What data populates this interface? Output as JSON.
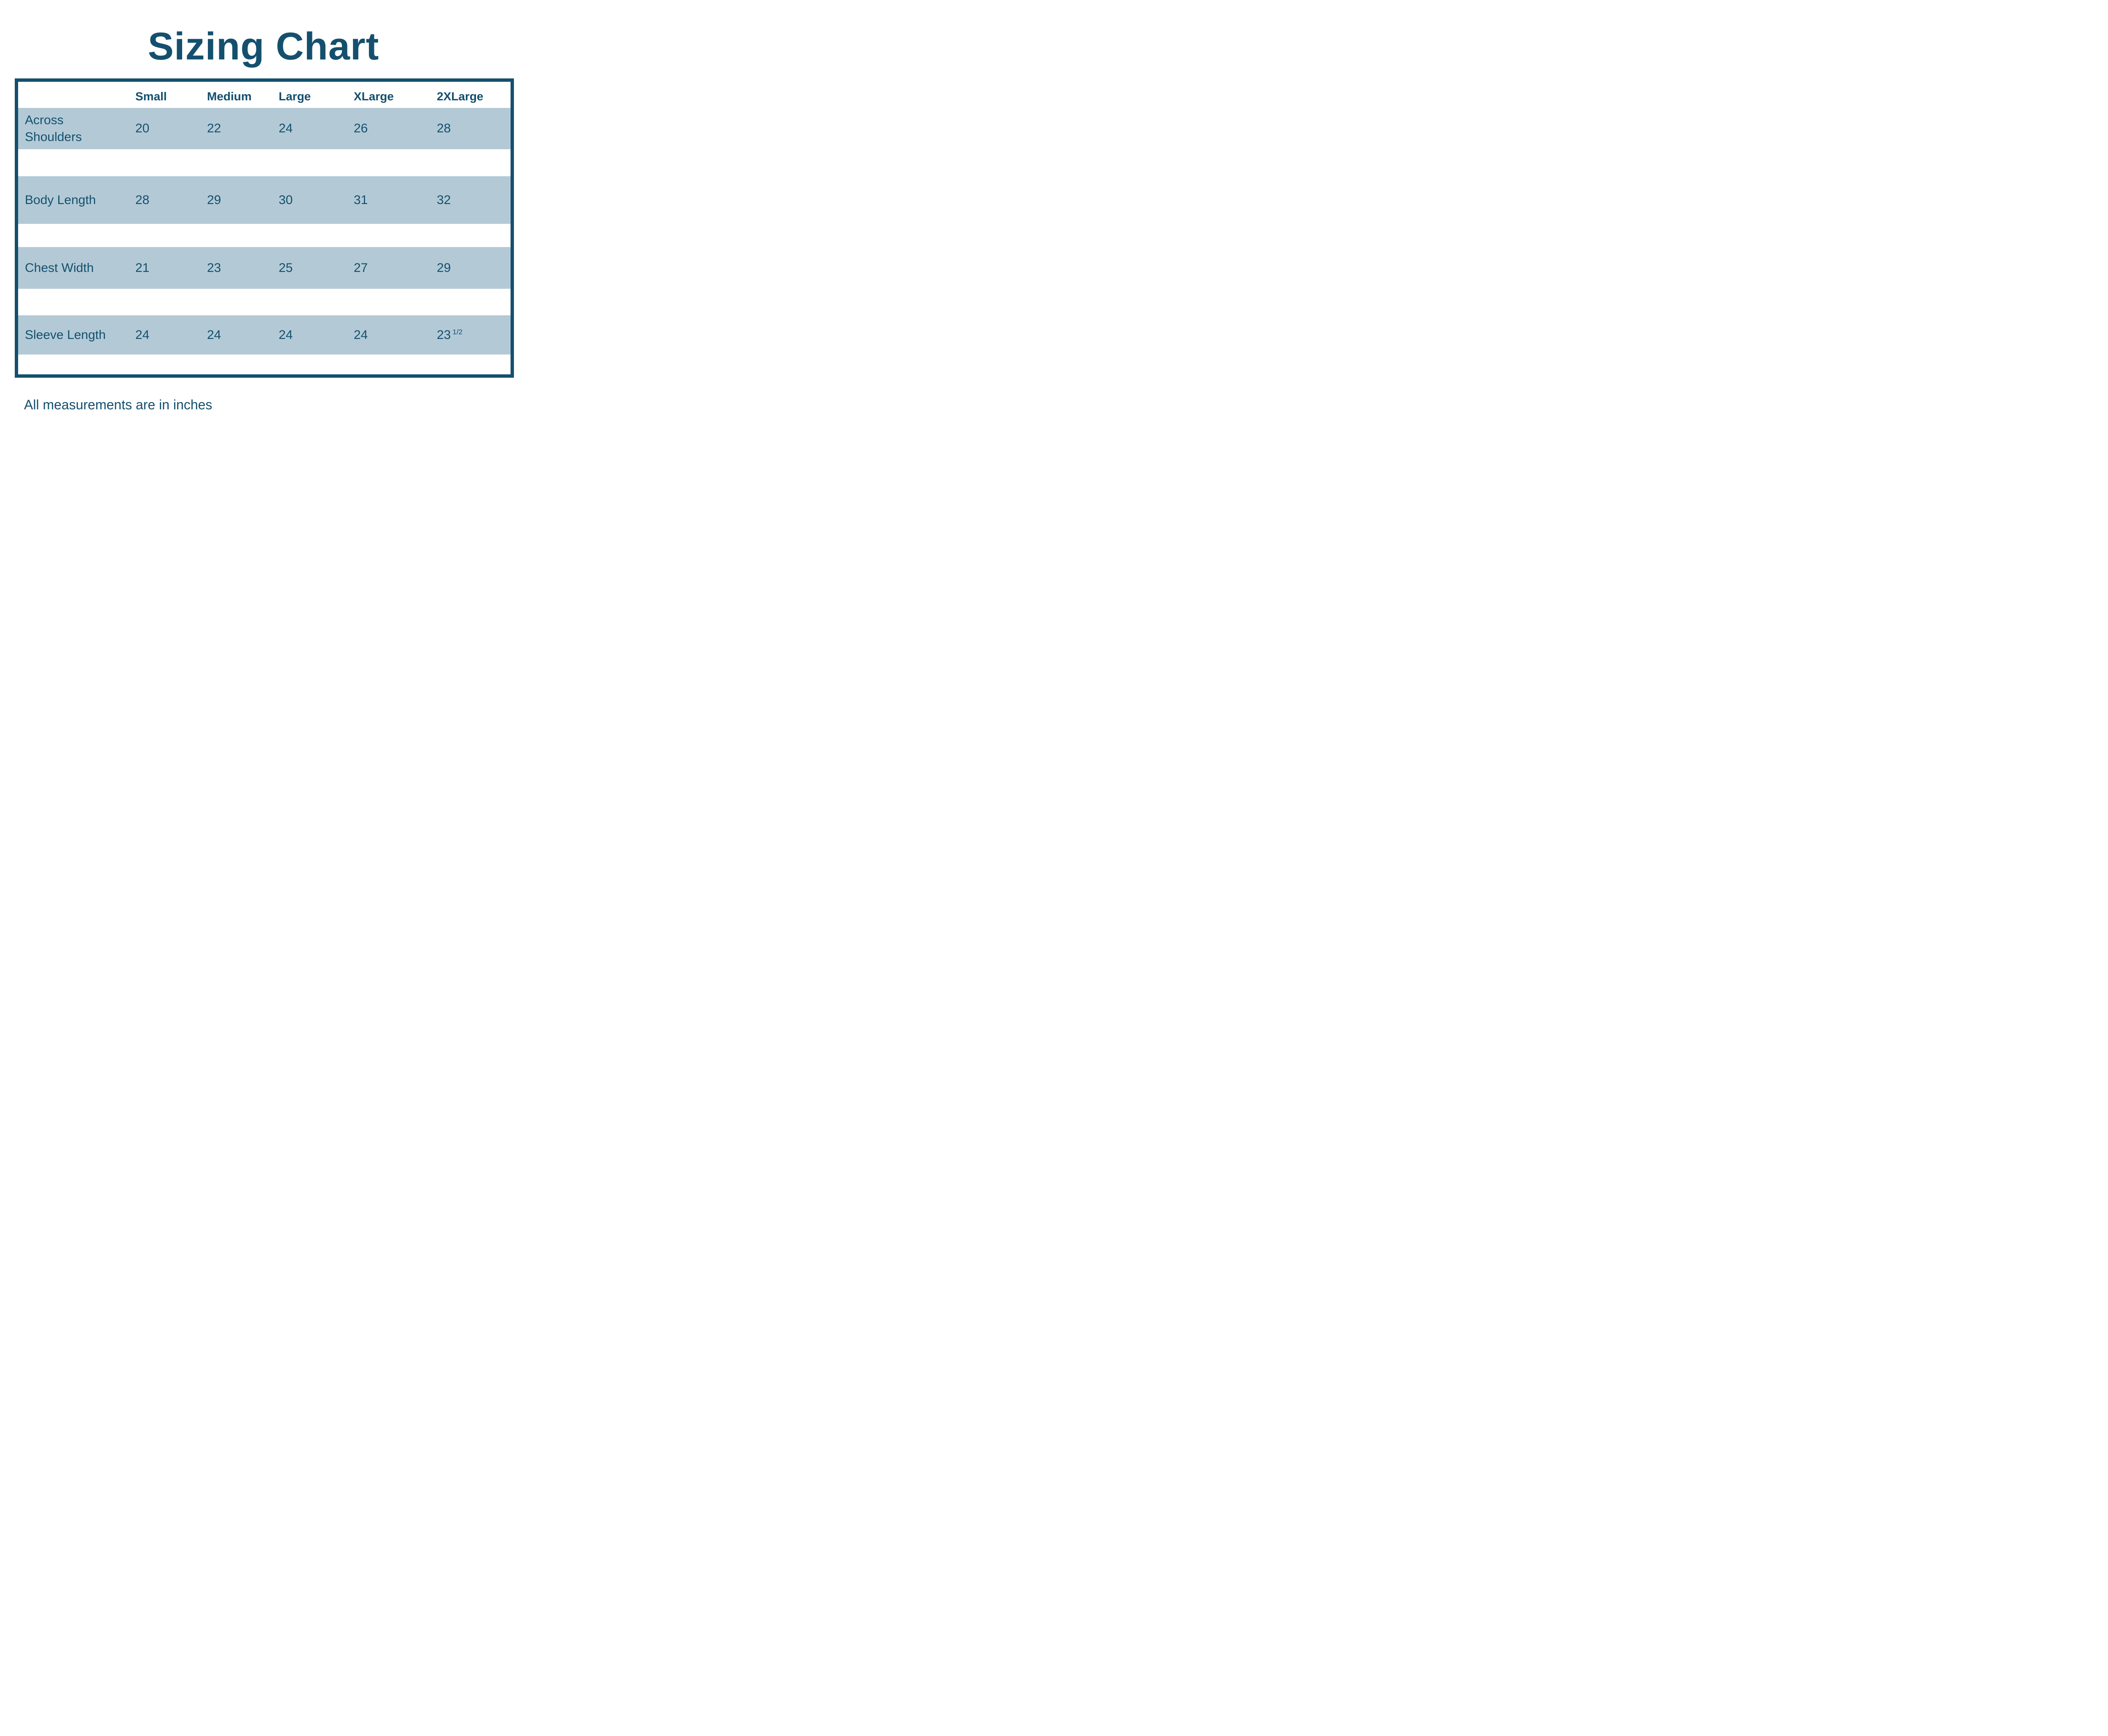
{
  "title": "Sizing Chart",
  "footnote": "All measurements are in inches",
  "colors": {
    "accent": "#14506e",
    "row_background": "#b3cad6",
    "page_background": "#ffffff"
  },
  "table": {
    "columns": [
      "Small",
      "Medium",
      "Large",
      "XLarge",
      "2XLarge"
    ],
    "rows": [
      {
        "label": "Across Shoulders",
        "values": [
          "20",
          "22",
          "24",
          "26",
          "28"
        ]
      },
      {
        "label": "Body Length",
        "values": [
          "28",
          "29",
          "30",
          "31",
          "32"
        ]
      },
      {
        "label": "Chest Width",
        "values": [
          "21",
          "23",
          "25",
          "27",
          "29"
        ]
      },
      {
        "label": "Sleeve Length",
        "values": [
          "24",
          "24",
          "24",
          "24",
          "23"
        ],
        "fraction": "1/2"
      }
    ]
  },
  "chart_data": {
    "type": "table",
    "title": "Sizing Chart",
    "columns": [
      "Small",
      "Medium",
      "Large",
      "XLarge",
      "2XLarge"
    ],
    "rows": [
      {
        "label": "Across Shoulders",
        "values": [
          20,
          22,
          24,
          26,
          28
        ]
      },
      {
        "label": "Body Length",
        "values": [
          28,
          29,
          30,
          31,
          32
        ]
      },
      {
        "label": "Chest Width",
        "values": [
          21,
          23,
          25,
          27,
          29
        ]
      },
      {
        "label": "Sleeve Length",
        "values": [
          24,
          24,
          24,
          24,
          23.5
        ]
      }
    ],
    "units": "inches",
    "note": "All measurements are in inches"
  }
}
